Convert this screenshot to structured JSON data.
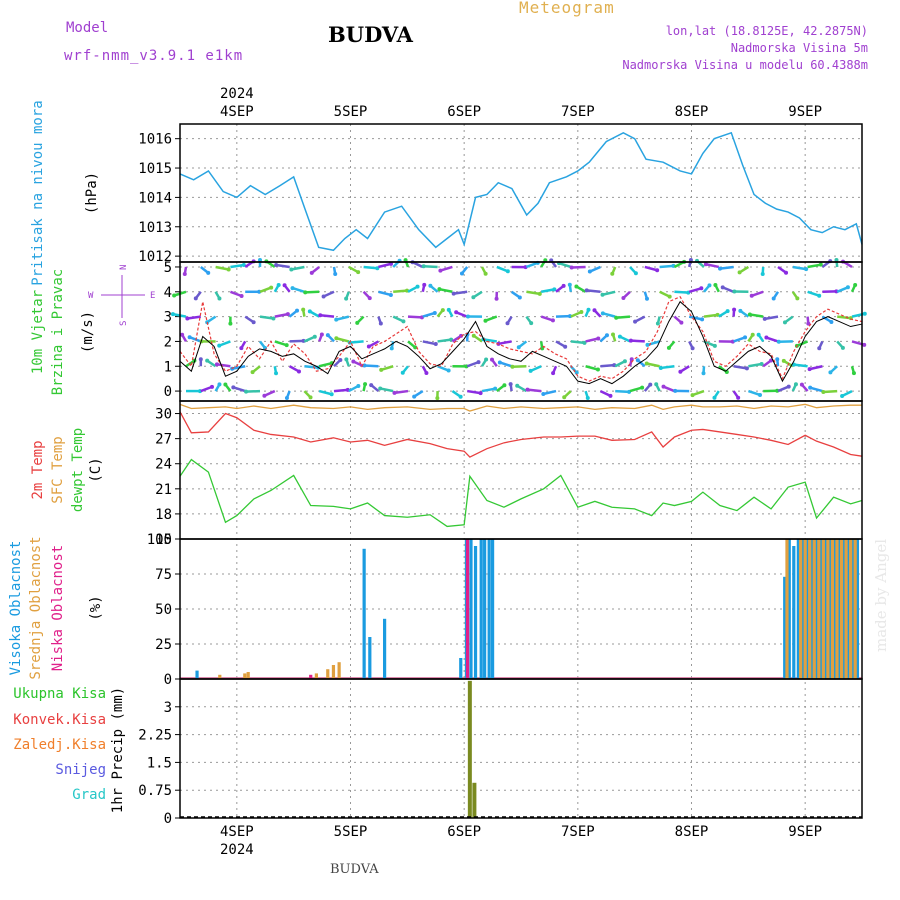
{
  "header": {
    "model_label": "Model",
    "model_name": "wrf-nmm_v3.9.1 e1km",
    "station": "BUDVA",
    "title": "Meteogram",
    "coords": "lon,lat (18.8125E, 42.2875N)",
    "elevation": "Nadmorska Visina 5m",
    "model_elevation": "Nadmorska Visina u modelu 60.4388m"
  },
  "footer": {
    "station": "BUDVA",
    "watermark": "made by Angel"
  },
  "colors": {
    "pressure": "#29a3e0",
    "wind_black": "#000000",
    "wind_red": "#e83b3b",
    "temp2m": "#e84040",
    "sfc_temp": "#e0a040",
    "dewpoint": "#34c834",
    "cloud_high": "#1a9be0",
    "cloud_mid": "#e0a040",
    "cloud_low": "#e0208a",
    "precip_total": "#2cc42c",
    "precip_conv": "#e84040",
    "precip_frozen": "#f07f2b",
    "precip_snow": "#5a5ae0",
    "precip_grad": "#26c7c7",
    "precip_bar": "#7a8a20"
  },
  "time_axis": {
    "year": "2024",
    "day_labels": [
      "4SEP",
      "5SEP",
      "6SEP",
      "7SEP",
      "8SEP",
      "9SEP"
    ],
    "start_day": 3.5,
    "end_day": 9.5
  },
  "chart_data": [
    {
      "type": "line",
      "id": "pressure",
      "ylabel": "(hPa)",
      "legend": [
        "Pritisak na nivou mora"
      ],
      "ylim": [
        1011.8,
        1016.5
      ],
      "yticks": [
        "1012",
        "1013",
        "1014",
        "1015",
        "1016"
      ],
      "ytick_values": [
        1012,
        1013,
        1014,
        1015,
        1016
      ],
      "x": [
        3.5,
        3.62,
        3.75,
        3.88,
        4.0,
        4.12,
        4.25,
        4.38,
        4.5,
        4.6,
        4.72,
        4.85,
        4.95,
        5.05,
        5.15,
        5.3,
        5.45,
        5.6,
        5.75,
        5.85,
        5.95,
        6.0,
        6.1,
        6.2,
        6.3,
        6.42,
        6.55,
        6.65,
        6.75,
        6.9,
        7.0,
        7.1,
        7.25,
        7.4,
        7.5,
        7.6,
        7.75,
        7.9,
        8.0,
        8.1,
        8.2,
        8.35,
        8.45,
        8.55,
        8.65,
        8.75,
        8.85,
        8.95,
        9.05,
        9.15,
        9.25,
        9.35,
        9.45,
        9.5
      ],
      "series": [
        {
          "values": [
            1014.8,
            1014.6,
            1014.9,
            1014.2,
            1014.0,
            1014.4,
            1014.1,
            1014.4,
            1014.7,
            1013.6,
            1012.3,
            1012.2,
            1012.6,
            1012.9,
            1012.6,
            1013.5,
            1013.7,
            1012.9,
            1012.3,
            1012.6,
            1012.9,
            1012.4,
            1014.0,
            1014.1,
            1014.5,
            1014.3,
            1013.4,
            1013.8,
            1014.5,
            1014.7,
            1014.9,
            1015.2,
            1015.9,
            1016.2,
            1016.0,
            1015.3,
            1015.2,
            1014.9,
            1014.8,
            1015.5,
            1016.0,
            1016.2,
            1015.1,
            1014.1,
            1013.8,
            1013.6,
            1013.5,
            1013.3,
            1012.9,
            1012.8,
            1013.0,
            1012.9,
            1013.1,
            1012.4
          ]
        }
      ]
    },
    {
      "type": "line",
      "id": "wind",
      "ylabel": "(m/s)",
      "legend": [
        "10m Vjetar",
        "Brzina i Pravac"
      ],
      "compass": {
        "w": "W",
        "e": "E",
        "n": "N",
        "s": "S"
      },
      "ylim": [
        -0.4,
        5.2
      ],
      "yticks": [
        "0",
        "1",
        "2",
        "3",
        "4",
        "5"
      ],
      "ytick_values": [
        0,
        1,
        2,
        3,
        4,
        5
      ],
      "x": [
        3.5,
        3.6,
        3.7,
        3.8,
        3.9,
        4.0,
        4.1,
        4.2,
        4.3,
        4.4,
        4.5,
        4.6,
        4.7,
        4.8,
        4.9,
        5.0,
        5.1,
        5.2,
        5.3,
        5.4,
        5.5,
        5.6,
        5.7,
        5.8,
        5.9,
        6.0,
        6.1,
        6.2,
        6.3,
        6.4,
        6.5,
        6.6,
        6.7,
        6.8,
        6.9,
        7.0,
        7.1,
        7.2,
        7.3,
        7.4,
        7.5,
        7.6,
        7.7,
        7.8,
        7.9,
        8.0,
        8.1,
        8.2,
        8.3,
        8.4,
        8.5,
        8.6,
        8.7,
        8.8,
        8.9,
        9.0,
        9.1,
        9.2,
        9.3,
        9.4,
        9.5
      ],
      "series": [
        {
          "name": "speed",
          "values": [
            1.2,
            0.8,
            2.2,
            1.8,
            0.6,
            0.8,
            1.4,
            1.7,
            1.6,
            1.4,
            1.5,
            1.2,
            1.0,
            0.7,
            1.6,
            1.8,
            1.3,
            1.5,
            1.7,
            2.0,
            1.8,
            1.4,
            0.9,
            1.1,
            1.6,
            2.1,
            2.8,
            1.8,
            1.5,
            1.3,
            1.2,
            1.6,
            1.4,
            1.2,
            1.0,
            0.4,
            0.3,
            0.5,
            0.3,
            0.6,
            1.0,
            1.3,
            1.8,
            2.8,
            3.6,
            3.2,
            2.2,
            1.0,
            0.8,
            1.2,
            1.6,
            1.8,
            1.4,
            0.4,
            1.2,
            2.2,
            2.8,
            3.0,
            2.8,
            2.6,
            2.7
          ]
        },
        {
          "name": "gust",
          "values": [
            1.6,
            1.0,
            3.6,
            1.5,
            0.8,
            1.0,
            1.8,
            1.3,
            2.0,
            1.2,
            1.9,
            1.5,
            0.8,
            0.9,
            1.4,
            2.0,
            1.0,
            1.8,
            2.0,
            2.3,
            2.6,
            1.6,
            1.1,
            1.0,
            1.9,
            2.3,
            2.4,
            2.0,
            1.9,
            1.7,
            1.6,
            1.5,
            1.8,
            1.5,
            1.3,
            0.6,
            0.4,
            0.6,
            0.5,
            0.8,
            1.3,
            1.6,
            2.4,
            3.6,
            3.8,
            3.0,
            2.4,
            1.2,
            1.0,
            1.4,
            1.9,
            1.6,
            1.5,
            0.5,
            1.6,
            2.4,
            3.0,
            3.3,
            3.1,
            2.9,
            2.8
          ]
        }
      ]
    },
    {
      "type": "line",
      "id": "temperature",
      "ylabel": "(C)",
      "legend": [
        "2m Temp",
        "SFC Temp",
        "dewpt Temp"
      ],
      "ylim": [
        15,
        31.5
      ],
      "yticks": [
        "15",
        "18",
        "21",
        "24",
        "27",
        "30"
      ],
      "ytick_values": [
        15,
        18,
        21,
        24,
        27,
        30
      ],
      "x": [
        3.5,
        3.6,
        3.75,
        3.9,
        4.0,
        4.15,
        4.3,
        4.5,
        4.65,
        4.85,
        5.0,
        5.15,
        5.3,
        5.5,
        5.7,
        5.85,
        6.0,
        6.05,
        6.2,
        6.35,
        6.5,
        6.7,
        6.85,
        7.0,
        7.15,
        7.3,
        7.5,
        7.65,
        7.75,
        7.85,
        8.0,
        8.1,
        8.25,
        8.4,
        8.55,
        8.7,
        8.85,
        9.0,
        9.1,
        9.25,
        9.4,
        9.5
      ],
      "series": [
        {
          "name": "2m Temp",
          "values": [
            30.2,
            27.7,
            27.8,
            30.0,
            29.5,
            28.0,
            27.5,
            27.2,
            26.6,
            27.1,
            26.6,
            26.8,
            26.2,
            26.9,
            26.4,
            25.8,
            25.5,
            24.8,
            25.8,
            26.5,
            26.9,
            27.2,
            27.2,
            27.3,
            27.3,
            26.8,
            26.9,
            27.8,
            26.0,
            27.2,
            28.0,
            28.1,
            27.8,
            27.5,
            27.2,
            26.8,
            26.3,
            27.4,
            26.7,
            26.0,
            25.1,
            24.9
          ]
        },
        {
          "name": "SFC Temp",
          "values": [
            31.1,
            30.6,
            30.7,
            30.8,
            30.6,
            30.9,
            30.6,
            31.0,
            30.7,
            30.6,
            30.8,
            30.5,
            30.7,
            30.8,
            30.5,
            30.6,
            30.6,
            30.3,
            30.9,
            30.6,
            30.8,
            30.6,
            30.7,
            30.8,
            30.5,
            30.7,
            30.6,
            31.0,
            30.5,
            30.8,
            31.0,
            30.8,
            30.8,
            30.9,
            30.6,
            30.9,
            30.8,
            31.1,
            30.7,
            30.9,
            31.0,
            31.0
          ]
        },
        {
          "name": "dewpt Temp",
          "values": [
            22.5,
            24.5,
            23.0,
            17.0,
            17.8,
            19.8,
            20.8,
            22.6,
            19.0,
            18.9,
            18.6,
            19.3,
            17.8,
            17.6,
            17.9,
            16.5,
            16.7,
            22.5,
            19.6,
            18.8,
            19.8,
            21.0,
            22.6,
            18.8,
            19.5,
            18.8,
            18.6,
            17.8,
            19.3,
            19.0,
            19.5,
            20.6,
            19.0,
            18.4,
            20.0,
            18.6,
            21.2,
            21.8,
            17.5,
            20.0,
            19.2,
            19.6
          ]
        }
      ]
    },
    {
      "type": "bar",
      "id": "clouds",
      "ylabel": "(%)",
      "legend": [
        "Visoka Oblacnost",
        "Srednja Oblacnost",
        "Niska Oblacnost"
      ],
      "ylim": [
        0,
        100
      ],
      "yticks": [
        "0",
        "25",
        "50",
        "75",
        "100"
      ],
      "ytick_values": [
        0,
        25,
        50,
        75,
        100
      ],
      "series": [
        {
          "name": "Visoka Oblacnost",
          "x": [
            3.65,
            5.12,
            5.17,
            5.3,
            5.97,
            6.02,
            6.06,
            6.1,
            6.15,
            6.18,
            6.22,
            6.25,
            8.82,
            8.86,
            8.9,
            8.94,
            8.98,
            9.02,
            9.06,
            9.1,
            9.14,
            9.18,
            9.22,
            9.26,
            9.3,
            9.34,
            9.38,
            9.42,
            9.46
          ],
          "values": [
            6,
            93,
            30,
            43,
            15,
            100,
            100,
            95,
            100,
            100,
            100,
            100,
            73,
            100,
            95,
            100,
            100,
            100,
            100,
            100,
            100,
            100,
            100,
            100,
            100,
            100,
            100,
            100,
            100
          ]
        },
        {
          "name": "Srednja Oblacnost",
          "x": [
            3.85,
            4.07,
            4.1,
            4.7,
            4.8,
            4.85,
            4.9,
            8.84,
            8.96,
            9.0,
            9.04,
            9.08,
            9.12,
            9.16,
            9.2,
            9.24,
            9.28,
            9.32,
            9.36,
            9.4,
            9.44
          ],
          "values": [
            3,
            4,
            5,
            4,
            7,
            10,
            12,
            100,
            100,
            100,
            100,
            100,
            100,
            100,
            100,
            100,
            100,
            100,
            100,
            100,
            100
          ]
        },
        {
          "name": "Niska Oblacnost",
          "x": [
            4.65,
            6.03
          ],
          "values": [
            3,
            100
          ]
        }
      ]
    },
    {
      "type": "bar",
      "id": "precip",
      "ylabel": "1hr Precip (mm)",
      "legend": [
        "Ukupna Kisa",
        "Konvek.Kisa",
        "Zaledj.Kisa",
        "Snijeg",
        "Grad"
      ],
      "ylim": [
        0,
        3.75
      ],
      "yticks": [
        "0",
        "0.75",
        "1.5",
        "2.25",
        "3"
      ],
      "ytick_values": [
        0,
        0.75,
        1.5,
        2.25,
        3
      ],
      "x": [
        6.05,
        6.09
      ],
      "values": [
        3.7,
        0.95
      ]
    }
  ]
}
